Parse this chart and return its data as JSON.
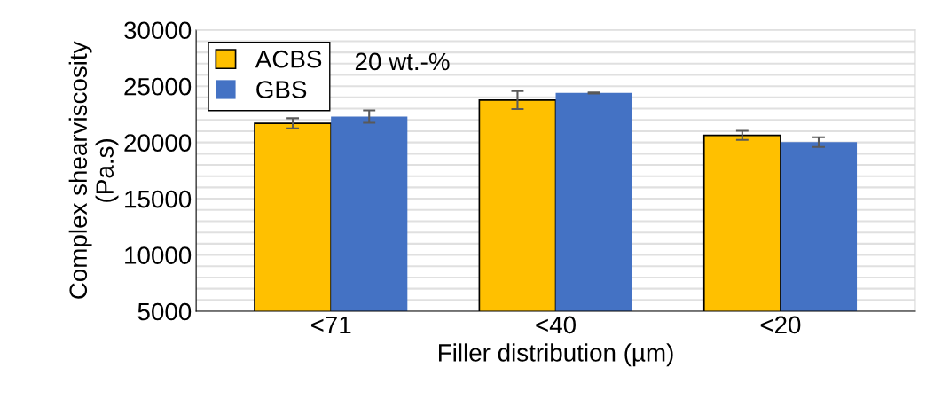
{
  "chart_data": {
    "type": "bar",
    "xlabel": "Filler distribution (µm)",
    "ylabel": "Complex shearviscosity\n(Pa.s)",
    "categories": [
      "<71",
      "<40",
      "<20"
    ],
    "series": [
      {
        "name": "ACBS",
        "color": "#ffc000",
        "values": [
          21700,
          23770,
          20630
        ],
        "errors": [
          450,
          800,
          400
        ]
      },
      {
        "name": "GBS",
        "color": "#4472c4",
        "values": [
          22300,
          24400,
          20030
        ],
        "errors": [
          550,
          50,
          430
        ]
      }
    ],
    "ylim": [
      5000,
      30000
    ],
    "yticks": [
      5000,
      {
        "value": 6000,
        "label": null
      },
      {
        "value": 7000,
        "label": null
      },
      {
        "value": 8000,
        "label": null
      },
      {
        "value": 9000,
        "label": null
      },
      10000,
      {
        "value": 11000,
        "label": null
      },
      {
        "value": 12000,
        "label": null
      },
      {
        "value": 13000,
        "label": null
      },
      {
        "value": 14000,
        "label": null
      },
      15000,
      {
        "value": 16000,
        "label": null
      },
      {
        "value": 17000,
        "label": null
      },
      {
        "value": 18000,
        "label": null
      },
      {
        "value": 19000,
        "label": null
      },
      20000,
      {
        "value": 21000,
        "label": null
      },
      {
        "value": 22000,
        "label": null
      },
      {
        "value": 23000,
        "label": null
      },
      {
        "value": 24000,
        "label": null
      },
      25000,
      {
        "value": 26000,
        "label": null
      },
      {
        "value": 27000,
        "label": null
      },
      {
        "value": 28000,
        "label": null
      },
      {
        "value": 29000,
        "label": null
      },
      30000
    ],
    "grid": "y",
    "legend": "top left",
    "annotations": [
      "20 wt.-%"
    ]
  }
}
